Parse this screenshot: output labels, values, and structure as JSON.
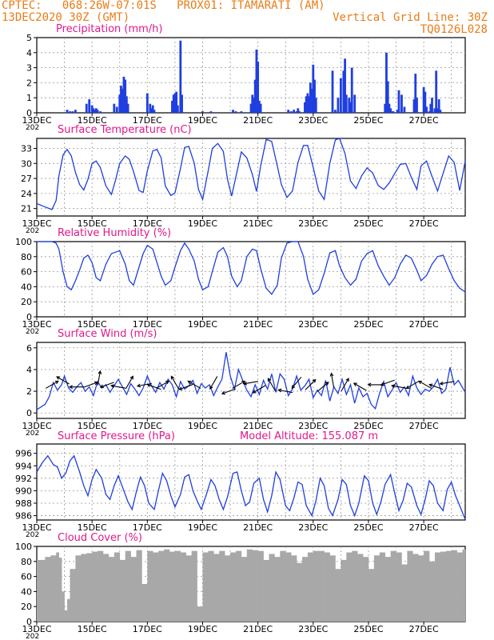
{
  "header": {
    "line1_left": "CPTEC:   068:26W-07:01S   PROX01: ITAMARATI (AM)",
    "line2_left": "13DEC2020 30Z (GMT)",
    "line2_right": "Vertical Grid Line: 30Z",
    "line3_right": "TQ0126L028",
    "accent_color": "#e87c18",
    "title_color": "#e0198a",
    "line_color": "#1f3fe0",
    "cloud_color": "#a8a8a8"
  },
  "x_axis": {
    "labels": [
      "13DEC",
      "15DEC",
      "17DEC",
      "19DEC",
      "21DEC",
      "23DEC",
      "25DEC",
      "27DEC"
    ],
    "range_days": [
      0,
      15.5
    ],
    "year_fragment": "202"
  },
  "chart_data": [
    {
      "type": "bar",
      "title": "Precipitation (mm/h)",
      "ylim": [
        0,
        5
      ],
      "yticks": [
        "0",
        "1",
        "2",
        "3",
        "4",
        "5"
      ],
      "x_days": [
        1.1,
        1.2,
        1.3,
        1.4,
        1.8,
        1.9,
        2.0,
        2.05,
        2.1,
        2.15,
        2.2,
        2.3,
        2.8,
        2.9,
        3.0,
        3.05,
        3.1,
        3.15,
        3.2,
        3.25,
        3.3,
        4.0,
        4.1,
        4.15,
        4.2,
        4.25,
        4.9,
        4.95,
        5.0,
        5.05,
        5.1,
        5.2,
        5.25,
        6.0,
        6.3,
        7.1,
        7.2,
        7.4,
        7.75,
        7.8,
        7.85,
        7.9,
        7.95,
        8.0,
        8.05,
        8.1,
        9.1,
        9.2,
        9.3,
        9.4,
        9.45,
        9.5,
        9.7,
        9.75,
        9.8,
        9.85,
        9.9,
        9.95,
        10.0,
        10.05,
        10.1,
        10.7,
        10.8,
        10.9,
        11.0,
        11.1,
        11.15,
        11.2,
        11.3,
        11.35,
        11.4,
        11.5,
        12.6,
        12.65,
        12.7,
        12.75,
        12.8,
        12.85,
        12.9,
        13.05,
        13.1,
        13.2,
        13.3,
        13.65,
        13.7,
        13.75,
        14.0,
        14.05,
        14.1,
        14.2,
        14.25,
        14.3,
        14.4,
        14.45,
        14.5,
        14.55,
        14.6
      ],
      "values": [
        0.2,
        0.1,
        0.1,
        0.2,
        0.6,
        0.9,
        0.5,
        0.3,
        0.2,
        0.3,
        0.2,
        0.1,
        0.6,
        0.4,
        1.2,
        1.8,
        1.6,
        2.4,
        2.2,
        1.1,
        0.6,
        1.3,
        0.6,
        0.3,
        0.5,
        0.2,
        0.8,
        1.2,
        1.3,
        1.4,
        0.5,
        4.8,
        1.2,
        0.1,
        0.1,
        0.2,
        0.1,
        0.1,
        0.6,
        1.2,
        1.0,
        2.2,
        4.2,
        3.4,
        0.8,
        0.6,
        0.2,
        0.1,
        0.2,
        0.1,
        0.3,
        0.1,
        0.7,
        1.1,
        1.3,
        1.1,
        2.0,
        1.6,
        3.2,
        2.2,
        1.0,
        2.8,
        0.2,
        1.0,
        2.3,
        2.8,
        3.6,
        1.2,
        1.0,
        0.7,
        3.0,
        1.2,
        0.6,
        4.0,
        2.1,
        0.6,
        0.3,
        0.1,
        0.1,
        0.2,
        1.5,
        1.2,
        0.4,
        0.9,
        2.6,
        1.0,
        1.7,
        1.4,
        0.4,
        0.1,
        0.6,
        1.0,
        0.3,
        2.8,
        0.3,
        0.9,
        0.2
      ]
    },
    {
      "type": "line",
      "title": "Surface Temperature (nC)",
      "ylim": [
        19.5,
        35
      ],
      "yticks": [
        "21",
        "24",
        "27",
        "30",
        "33"
      ],
      "x_days": [
        0,
        0.3,
        0.55,
        0.7,
        0.8,
        0.95,
        1.1,
        1.25,
        1.4,
        1.55,
        1.7,
        1.85,
        2.0,
        2.15,
        2.3,
        2.5,
        2.7,
        2.85,
        3.0,
        3.2,
        3.35,
        3.5,
        3.7,
        3.85,
        4.0,
        4.2,
        4.35,
        4.5,
        4.65,
        4.85,
        5.0,
        5.2,
        5.35,
        5.5,
        5.7,
        5.85,
        6.0,
        6.2,
        6.35,
        6.55,
        6.75,
        6.9,
        7.05,
        7.25,
        7.4,
        7.6,
        7.8,
        7.95,
        8.1,
        8.3,
        8.5,
        8.7,
        8.85,
        9.05,
        9.25,
        9.45,
        9.65,
        9.8,
        10.0,
        10.2,
        10.4,
        10.6,
        10.8,
        10.95,
        11.15,
        11.35,
        11.55,
        11.75,
        11.95,
        12.15,
        12.35,
        12.55,
        12.75,
        12.95,
        13.15,
        13.35,
        13.55,
        13.75,
        13.9,
        14.1,
        14.3,
        14.5,
        14.7,
        14.9,
        15.1,
        15.3,
        15.5
      ],
      "values": [
        22,
        21.3,
        20.8,
        22.6,
        27.5,
        31.7,
        32.8,
        31.5,
        28.2,
        25.8,
        24.7,
        26.8,
        30,
        30.5,
        29.2,
        25.5,
        23.8,
        26.7,
        30,
        31.5,
        30.8,
        28.4,
        24.6,
        24.2,
        28.5,
        32.5,
        32.8,
        31.1,
        25.5,
        23.6,
        24.1,
        29,
        33.2,
        33.4,
        30,
        24.8,
        22.8,
        28.5,
        33,
        34,
        32.4,
        26.8,
        23.5,
        28.5,
        32.3,
        31.1,
        27.8,
        24.4,
        29.5,
        34.8,
        34.4,
        29.5,
        25.8,
        23.2,
        24.5,
        30.2,
        33.6,
        33.6,
        29.2,
        24.5,
        22.8,
        30,
        34.7,
        35,
        32,
        26.5,
        25,
        27.5,
        29.1,
        28.1,
        25.6,
        24.8,
        26.1,
        28,
        29.8,
        30,
        27.2,
        24.8,
        29.5,
        30.5,
        27.4,
        24.5,
        28,
        31.5,
        30.2,
        24.6,
        30.5
      ]
    },
    {
      "type": "line",
      "title": "Relative Humidity (%)",
      "ylim": [
        0,
        100
      ],
      "yticks": [
        "0",
        "20",
        "40",
        "60",
        "80",
        "100"
      ],
      "x_days": [
        0,
        0.3,
        0.55,
        0.7,
        0.8,
        0.95,
        1.1,
        1.25,
        1.4,
        1.55,
        1.7,
        1.85,
        2.0,
        2.15,
        2.3,
        2.5,
        2.7,
        2.85,
        3.0,
        3.2,
        3.35,
        3.5,
        3.7,
        3.85,
        4.0,
        4.2,
        4.35,
        4.5,
        4.65,
        4.85,
        5.0,
        5.2,
        5.35,
        5.5,
        5.7,
        5.85,
        6.0,
        6.2,
        6.35,
        6.55,
        6.75,
        6.9,
        7.05,
        7.25,
        7.4,
        7.6,
        7.8,
        7.95,
        8.1,
        8.3,
        8.5,
        8.7,
        8.85,
        9.05,
        9.25,
        9.45,
        9.65,
        9.8,
        10.0,
        10.2,
        10.4,
        10.6,
        10.8,
        10.95,
        11.15,
        11.35,
        11.55,
        11.75,
        11.95,
        12.15,
        12.35,
        12.55,
        12.75,
        12.95,
        13.15,
        13.35,
        13.55,
        13.75,
        13.9,
        14.1,
        14.3,
        14.5,
        14.7,
        14.9,
        15.1,
        15.3,
        15.5
      ],
      "values": [
        100,
        100,
        100,
        98,
        90,
        60,
        40,
        36,
        48,
        62,
        78,
        82,
        72,
        52,
        48,
        70,
        84,
        86,
        88,
        70,
        48,
        42,
        66,
        84,
        95,
        90,
        72,
        54,
        42,
        48,
        66,
        88,
        98,
        90,
        74,
        50,
        36,
        40,
        60,
        86,
        92,
        80,
        54,
        40,
        48,
        80,
        90,
        88,
        64,
        38,
        30,
        42,
        78,
        98,
        100,
        100,
        80,
        50,
        30,
        36,
        58,
        85,
        88,
        68,
        52,
        42,
        50,
        74,
        84,
        88,
        68,
        54,
        42,
        52,
        70,
        82,
        78,
        62,
        48,
        55,
        70,
        80,
        82,
        64,
        48,
        38,
        33
      ]
    },
    {
      "type": "line",
      "title": "Surface Wind (m/s)",
      "ylim": [
        -0.5,
        6.5
      ],
      "yticks": [
        "0",
        "2",
        "4",
        "6"
      ],
      "x_days": [
        0,
        0.3,
        0.45,
        0.6,
        0.75,
        0.9,
        1.0,
        1.15,
        1.3,
        1.45,
        1.6,
        1.75,
        1.9,
        2.05,
        2.2,
        2.35,
        2.5,
        2.65,
        2.8,
        2.95,
        3.1,
        3.25,
        3.4,
        3.55,
        3.7,
        3.85,
        4.0,
        4.15,
        4.3,
        4.45,
        4.6,
        4.75,
        4.9,
        5.05,
        5.2,
        5.35,
        5.5,
        5.65,
        5.8,
        5.95,
        6.1,
        6.25,
        6.4,
        6.55,
        6.7,
        6.85,
        7.0,
        7.15,
        7.3,
        7.45,
        7.6,
        7.75,
        7.9,
        8.05,
        8.2,
        8.35,
        8.5,
        8.65,
        8.8,
        8.95,
        9.1,
        9.25,
        9.4,
        9.55,
        9.7,
        9.85,
        10.0,
        10.15,
        10.3,
        10.45,
        10.6,
        10.75,
        10.9,
        11.05,
        11.2,
        11.35,
        11.5,
        11.65,
        11.8,
        11.95,
        12.1,
        12.25,
        12.4,
        12.55,
        12.7,
        12.85,
        13.0,
        13.15,
        13.3,
        13.45,
        13.6,
        13.75,
        13.9,
        14.05,
        14.2,
        14.35,
        14.5,
        14.65,
        14.8,
        14.95,
        15.1,
        15.25,
        15.5
      ],
      "values": [
        0.3,
        0.8,
        1.5,
        2.8,
        2.1,
        2.6,
        3.4,
        2.3,
        1.9,
        2.4,
        2.8,
        2.0,
        2.4,
        1.6,
        2.9,
        2.3,
        2.6,
        1.9,
        2.5,
        3.1,
        2.4,
        1.7,
        2.7,
        2.2,
        1.6,
        2.3,
        3.4,
        2.5,
        1.9,
        2.8,
        2.2,
        3.1,
        2.6,
        1.5,
        2.9,
        2.2,
        2.5,
        3.0,
        1.8,
        2.7,
        2.3,
        2.6,
        1.6,
        2.4,
        3.1,
        5.6,
        3.4,
        2.2,
        4.0,
        3.0,
        2.1,
        1.5,
        2.6,
        1.7,
        3.0,
        2.2,
        3.6,
        1.9,
        3.6,
        3.1,
        1.6,
        2.2,
        3.4,
        2.1,
        2.5,
        3.1,
        1.4,
        2.1,
        1.6,
        3.0,
        1.1,
        2.4,
        1.8,
        3.1,
        1.7,
        2.6,
        0.9,
        2.3,
        1.5,
        1.8,
        0.8,
        0.4,
        1.8,
        2.9,
        1.5,
        2.1,
        2.8,
        1.9,
        2.4,
        1.6,
        3.4,
        2.3,
        1.7,
        2.2,
        2.0,
        2.4,
        3.1,
        1.8,
        2.2,
        4.2,
        2.6,
        3.0,
        1.9
      ]
    },
    {
      "type": "line",
      "title": "Surface Pressure (hPa)",
      "annotation": "Model Altitude: 155.087 m",
      "ylim": [
        985.3,
        997.5
      ],
      "yticks": [
        "986",
        "988",
        "990",
        "992",
        "994",
        "996"
      ],
      "x_days": [
        0,
        0.2,
        0.4,
        0.6,
        0.75,
        0.9,
        1.05,
        1.2,
        1.35,
        1.55,
        1.7,
        1.85,
        2.0,
        2.15,
        2.35,
        2.5,
        2.65,
        2.8,
        2.95,
        3.1,
        3.3,
        3.45,
        3.6,
        3.75,
        3.9,
        4.05,
        4.25,
        4.4,
        4.55,
        4.7,
        4.85,
        5.0,
        5.2,
        5.35,
        5.5,
        5.65,
        5.8,
        5.95,
        6.15,
        6.3,
        6.45,
        6.6,
        6.75,
        6.9,
        7.1,
        7.25,
        7.4,
        7.55,
        7.7,
        7.85,
        8.05,
        8.2,
        8.35,
        8.5,
        8.65,
        8.8,
        9.0,
        9.15,
        9.3,
        9.45,
        9.6,
        9.75,
        9.95,
        10.1,
        10.25,
        10.4,
        10.55,
        10.7,
        10.9,
        11.05,
        11.2,
        11.35,
        11.5,
        11.65,
        11.85,
        12.0,
        12.15,
        12.3,
        12.45,
        12.6,
        12.8,
        12.95,
        13.1,
        13.25,
        13.4,
        13.55,
        13.75,
        13.9,
        14.05,
        14.2,
        14.35,
        14.5,
        14.7,
        14.85,
        15.0,
        15.15,
        15.3,
        15.5
      ],
      "values": [
        993.0,
        994.5,
        995.6,
        994.2,
        993.8,
        992.0,
        992.8,
        994.8,
        995.6,
        993.0,
        990.8,
        989.2,
        991.8,
        993.4,
        992.0,
        989.4,
        988.6,
        990.8,
        992.4,
        990.6,
        988.2,
        987.0,
        989.8,
        992.2,
        990.8,
        988.0,
        987.0,
        990.0,
        992.8,
        991.6,
        989.2,
        987.4,
        989.4,
        992.2,
        992.6,
        990.0,
        988.4,
        987.0,
        989.6,
        991.8,
        990.8,
        988.6,
        987.0,
        989.0,
        992.8,
        993.0,
        990.0,
        987.6,
        988.2,
        991.2,
        992.0,
        988.6,
        986.6,
        989.2,
        993.0,
        991.8,
        987.6,
        986.8,
        988.8,
        991.4,
        991.0,
        987.6,
        986.0,
        988.4,
        992.0,
        990.8,
        987.2,
        986.0,
        988.6,
        991.8,
        991.0,
        987.6,
        986.0,
        988.0,
        992.4,
        991.6,
        988.0,
        986.2,
        988.2,
        991.0,
        992.6,
        989.6,
        986.8,
        988.4,
        991.2,
        990.6,
        987.6,
        986.2,
        988.6,
        991.6,
        990.8,
        988.0,
        986.8,
        990.2,
        991.4,
        989.2,
        987.6,
        985.4
      ]
    },
    {
      "type": "area",
      "title": "Cloud Cover (%)",
      "ylim": [
        0,
        100
      ],
      "yticks": [
        "0",
        "20",
        "40",
        "60",
        "80",
        "100"
      ],
      "x_days": [
        0,
        0.3,
        0.5,
        0.7,
        0.8,
        0.9,
        1.0,
        1.1,
        1.2,
        1.4,
        1.6,
        1.8,
        2.0,
        2.2,
        2.4,
        2.6,
        2.8,
        3.0,
        3.2,
        3.4,
        3.6,
        3.8,
        4.0,
        4.2,
        4.4,
        4.6,
        4.8,
        5.0,
        5.2,
        5.4,
        5.6,
        5.8,
        6.0,
        6.2,
        6.4,
        6.6,
        6.8,
        7.0,
        7.2,
        7.4,
        7.6,
        7.8,
        8.0,
        8.2,
        8.4,
        8.6,
        8.8,
        9.0,
        9.2,
        9.4,
        9.6,
        9.8,
        10.0,
        10.2,
        10.4,
        10.6,
        10.8,
        11.0,
        11.2,
        11.4,
        11.6,
        11.8,
        12.0,
        12.2,
        12.4,
        12.6,
        12.8,
        13.0,
        13.2,
        13.4,
        13.6,
        13.8,
        14.0,
        14.2,
        14.4,
        14.6,
        14.8,
        15.0,
        15.2,
        15.4,
        15.5
      ],
      "values": [
        82,
        86,
        88,
        92,
        85,
        40,
        15,
        30,
        70,
        88,
        90,
        91,
        93,
        94,
        90,
        86,
        92,
        82,
        94,
        86,
        95,
        50,
        94,
        92,
        94,
        96,
        93,
        94,
        92,
        88,
        94,
        20,
        92,
        94,
        90,
        94,
        88,
        92,
        94,
        86,
        96,
        95,
        94,
        82,
        90,
        86,
        94,
        92,
        88,
        78,
        86,
        92,
        94,
        94,
        92,
        88,
        70,
        82,
        92,
        94,
        90,
        86,
        70,
        88,
        92,
        86,
        94,
        92,
        76,
        94,
        90,
        88,
        94,
        80,
        92,
        93,
        94,
        95,
        92,
        96,
        90
      ]
    },
    {
      "type": "scatter",
      "title": "Surface Wind direction arrows",
      "x_days": [
        0.55,
        0.95,
        1.45,
        1.95,
        2.25,
        2.55,
        2.95,
        3.35,
        3.9,
        4.25,
        4.55,
        5.0,
        5.4,
        5.7,
        6.4,
        6.95,
        7.3,
        7.75,
        8.05,
        8.5,
        9.0,
        9.4,
        9.9,
        10.35,
        10.7,
        11.15,
        11.7,
        12.25,
        12.7,
        13.1,
        13.6,
        14.05,
        14.45,
        14.85
      ],
      "values": [
        2.6,
        3.0,
        2.4,
        2.6,
        3.2,
        2.6,
        2.4,
        2.8,
        2.6,
        2.4,
        2.6,
        2.8,
        2.4,
        2.6,
        2.8,
        2.0,
        2.6,
        2.8,
        2.2,
        2.6,
        2.0,
        2.8,
        2.6,
        2.4,
        3.0,
        2.6,
        2.4,
        2.6,
        2.8,
        2.4,
        2.6,
        2.6,
        2.4,
        2.8
      ],
      "direction_deg": [
        30,
        150,
        180,
        20,
        80,
        200,
        170,
        60,
        190,
        160,
        30,
        120,
        200,
        150,
        240,
        200,
        30,
        190,
        210,
        120,
        170,
        230,
        45,
        40,
        100,
        60,
        150,
        180,
        200,
        170,
        210,
        150,
        160,
        190
      ]
    }
  ]
}
